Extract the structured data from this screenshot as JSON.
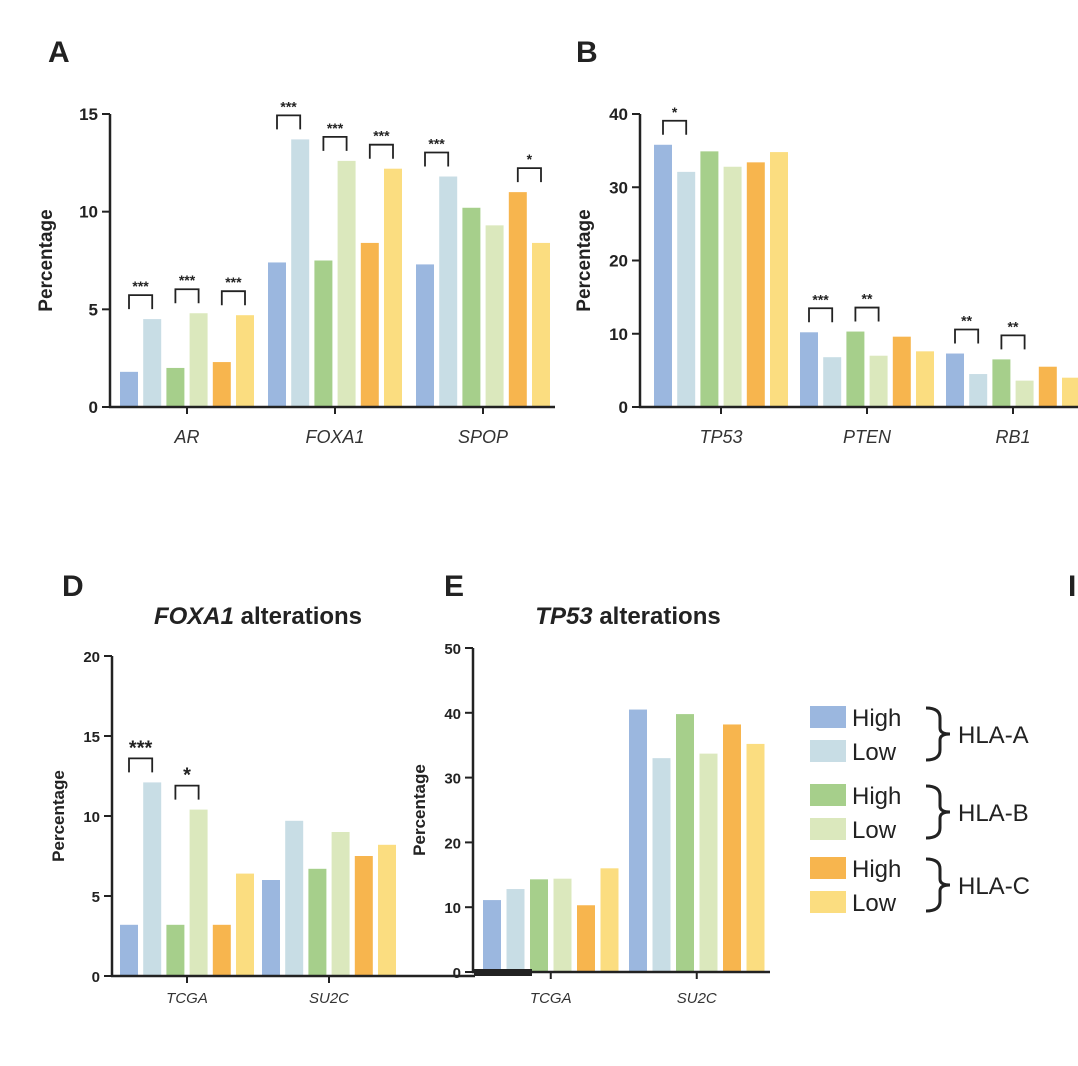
{
  "colors": {
    "hla_a_high": "#9bb7df",
    "hla_a_low": "#c8dde5",
    "hla_b_high": "#a6cf8b",
    "hla_b_low": "#dbe8bd",
    "hla_c_high": "#f7b54e",
    "hla_c_low": "#fbdd80"
  },
  "legend": {
    "groups": [
      {
        "name": "HLA-A",
        "items": [
          {
            "label": "High",
            "color_key": "hla_a_high"
          },
          {
            "label": "Low",
            "color_key": "hla_a_low"
          }
        ]
      },
      {
        "name": "HLA-B",
        "items": [
          {
            "label": "High",
            "color_key": "hla_b_high"
          },
          {
            "label": "Low",
            "color_key": "hla_b_low"
          }
        ]
      },
      {
        "name": "HLA-C",
        "items": [
          {
            "label": "High",
            "color_key": "hla_c_high"
          },
          {
            "label": "Low",
            "color_key": "hla_c_low"
          }
        ]
      }
    ]
  },
  "chart_data": [
    {
      "id": "A",
      "panel_letter": "A",
      "type": "bar",
      "title": "",
      "ylabel": "Percentage",
      "ylim": [
        0,
        15
      ],
      "yticks": [
        "0",
        "5",
        "10",
        "15"
      ],
      "categories": [
        "AR",
        "FOXA1",
        "SPOP"
      ],
      "series": [
        {
          "name": "HLA-A High",
          "values": [
            1.8,
            7.4,
            7.3
          ]
        },
        {
          "name": "HLA-A Low",
          "values": [
            4.5,
            13.7,
            11.8
          ]
        },
        {
          "name": "HLA-B High",
          "values": [
            2.0,
            7.5,
            10.2
          ]
        },
        {
          "name": "HLA-B Low",
          "values": [
            4.8,
            12.6,
            9.3
          ]
        },
        {
          "name": "HLA-C High",
          "values": [
            2.3,
            8.4,
            11.0
          ]
        },
        {
          "name": "HLA-C Low",
          "values": [
            4.7,
            12.2,
            8.4
          ]
        }
      ],
      "significance": [
        {
          "category": 0,
          "pair": 0,
          "label": "***"
        },
        {
          "category": 0,
          "pair": 1,
          "label": "***"
        },
        {
          "category": 0,
          "pair": 2,
          "label": "***"
        },
        {
          "category": 1,
          "pair": 0,
          "label": "***"
        },
        {
          "category": 1,
          "pair": 1,
          "label": "***"
        },
        {
          "category": 1,
          "pair": 2,
          "label": "***"
        },
        {
          "category": 2,
          "pair": 0,
          "label": "***"
        },
        {
          "category": 2,
          "pair": 2,
          "label": "*"
        }
      ]
    },
    {
      "id": "B",
      "panel_letter": "B",
      "type": "bar",
      "title": "",
      "ylabel": "Percentage",
      "ylim": [
        0,
        40
      ],
      "yticks": [
        "0",
        "10",
        "20",
        "30",
        "40"
      ],
      "categories": [
        "TP53",
        "PTEN",
        "RB1"
      ],
      "series": [
        {
          "name": "HLA-A High",
          "values": [
            35.8,
            10.2,
            7.3
          ]
        },
        {
          "name": "HLA-A Low",
          "values": [
            32.1,
            6.8,
            4.5
          ]
        },
        {
          "name": "HLA-B High",
          "values": [
            34.9,
            10.3,
            6.5
          ]
        },
        {
          "name": "HLA-B Low",
          "values": [
            32.8,
            7.0,
            3.6
          ]
        },
        {
          "name": "HLA-C High",
          "values": [
            33.4,
            9.6,
            5.5
          ]
        },
        {
          "name": "HLA-C Low",
          "values": [
            34.8,
            7.6,
            4.0
          ]
        }
      ],
      "significance": [
        {
          "category": 0,
          "pair": 0,
          "label": "*"
        },
        {
          "category": 1,
          "pair": 0,
          "label": "***"
        },
        {
          "category": 1,
          "pair": 1,
          "label": "**"
        },
        {
          "category": 2,
          "pair": 0,
          "label": "**"
        },
        {
          "category": 2,
          "pair": 1,
          "label": "**"
        }
      ]
    },
    {
      "id": "D",
      "panel_letter": "D",
      "type": "bar",
      "title_italic": "FOXA1",
      "title_rest": " alterations",
      "ylabel": "Percentage",
      "ylim": [
        0,
        20
      ],
      "yticks": [
        "0",
        "5",
        "10",
        "15",
        "20"
      ],
      "categories": [
        "TCGA",
        "SU2C"
      ],
      "series": [
        {
          "name": "HLA-A High",
          "values": [
            3.2,
            6.0
          ]
        },
        {
          "name": "HLA-A Low",
          "values": [
            12.1,
            9.7
          ]
        },
        {
          "name": "HLA-B High",
          "values": [
            3.2,
            6.7
          ]
        },
        {
          "name": "HLA-B Low",
          "values": [
            10.4,
            9.0
          ]
        },
        {
          "name": "HLA-C High",
          "values": [
            3.2,
            7.5
          ]
        },
        {
          "name": "HLA-C Low",
          "values": [
            6.4,
            8.2
          ]
        }
      ],
      "significance": [
        {
          "category": 0,
          "pair": 0,
          "label": "***"
        },
        {
          "category": 0,
          "pair": 1,
          "label": "*"
        }
      ]
    },
    {
      "id": "E",
      "panel_letter": "E",
      "type": "bar",
      "title_italic": "TP53",
      "title_rest": " alterations",
      "ylabel": "Percentage",
      "ylim": [
        0,
        50
      ],
      "yticks": [
        "0",
        "10",
        "20",
        "30",
        "40",
        "50"
      ],
      "categories": [
        "TCGA",
        "SU2C"
      ],
      "series": [
        {
          "name": "HLA-A High",
          "values": [
            11.1,
            40.5
          ]
        },
        {
          "name": "HLA-A Low",
          "values": [
            12.8,
            33.0
          ]
        },
        {
          "name": "HLA-B High",
          "values": [
            14.3,
            39.8
          ]
        },
        {
          "name": "HLA-B Low",
          "values": [
            14.4,
            33.7
          ]
        },
        {
          "name": "HLA-C High",
          "values": [
            10.3,
            38.2
          ]
        },
        {
          "name": "HLA-C Low",
          "values": [
            16.0,
            35.2
          ]
        }
      ],
      "significance": []
    }
  ],
  "partial_panel_letter": "I"
}
